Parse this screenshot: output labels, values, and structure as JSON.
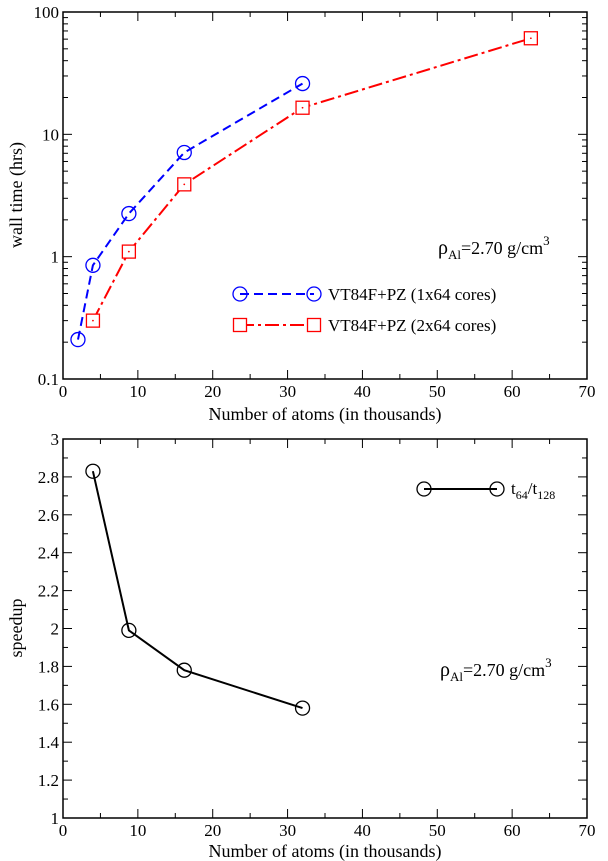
{
  "chart_data": [
    {
      "type": "line",
      "yscale": "log",
      "xlabel": "Number of atoms (in thousands)",
      "ylabel": "wall time (hrs)",
      "xlim": [
        0,
        70
      ],
      "ylim": [
        0.1,
        100
      ],
      "xticks": [
        "0",
        "10",
        "20",
        "30",
        "40",
        "50",
        "60",
        "70"
      ],
      "yticks": [
        "0.1",
        "1",
        "10",
        "100"
      ],
      "annotation": {
        "rho": "ρ",
        "sub": "Al",
        "text": "=2.70 g/cm",
        "sup": "3"
      },
      "legend_position": "center-right",
      "series": [
        {
          "name": "VT84F+PZ (1x64 cores)",
          "color": "#0000ff",
          "marker": "circle",
          "linestyle": "dashed",
          "x": [
            2.0,
            4.0,
            8.8,
            16.2,
            32.0
          ],
          "y": [
            0.21,
            0.85,
            2.25,
            7.1,
            26.0
          ]
        },
        {
          "name": "VT84F+PZ (2x64 cores)",
          "color": "#ff0000",
          "marker": "square",
          "linestyle": "dashdot",
          "x": [
            4.0,
            8.8,
            16.2,
            32.0,
            62.5
          ],
          "y": [
            0.3,
            1.1,
            3.9,
            16.5,
            61.0
          ]
        }
      ]
    },
    {
      "type": "line",
      "xlabel": "Number of atoms (in thousands)",
      "ylabel": "speedup",
      "xlim": [
        0,
        70
      ],
      "ylim": [
        1,
        3
      ],
      "xticks": [
        "0",
        "10",
        "20",
        "30",
        "40",
        "50",
        "60",
        "70"
      ],
      "yticks": [
        "1",
        "1.2",
        "1.4",
        "1.6",
        "1.8",
        "2",
        "2.2",
        "2.4",
        "2.6",
        "2.8",
        "3"
      ],
      "annotation": {
        "rho": "ρ",
        "sub": "Al",
        "text": "=2.70 g/cm",
        "sup": "3"
      },
      "legend_position": "top-right",
      "series": [
        {
          "name": "t64/t128",
          "legend_parts": {
            "t": "t",
            "s1": "64",
            "slash": "/t",
            "s2": "128"
          },
          "color": "#000000",
          "marker": "circle",
          "linestyle": "solid",
          "x": [
            4.0,
            8.8,
            16.2,
            32.0
          ],
          "y": [
            2.83,
            1.99,
            1.78,
            1.58
          ]
        }
      ]
    }
  ]
}
